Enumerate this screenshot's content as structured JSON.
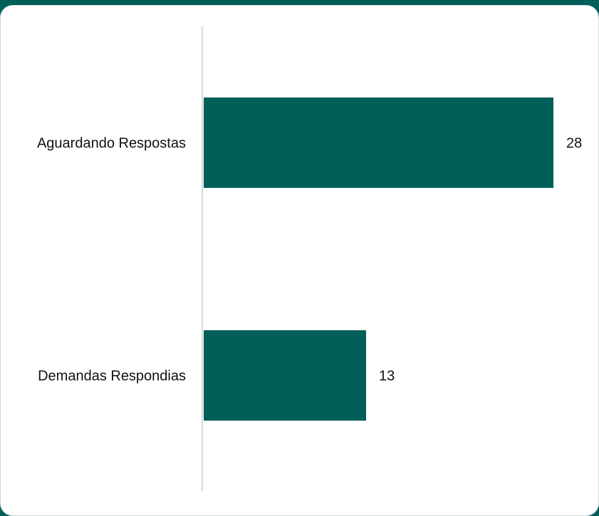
{
  "chart_data": {
    "type": "bar",
    "orientation": "horizontal",
    "categories": [
      "Aguardando Respostas",
      "Demandas Respondias"
    ],
    "values": [
      28,
      13
    ],
    "data_labels": [
      "28",
      "13"
    ],
    "title": "",
    "xlabel": "",
    "ylabel": "",
    "xlim": [
      0,
      28
    ],
    "grid": false,
    "legend": "none",
    "bar_color": "#005f59",
    "axis_color": "#d9d9d9"
  }
}
